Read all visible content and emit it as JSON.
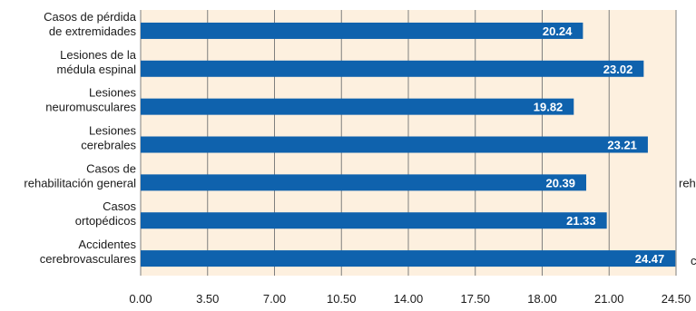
{
  "chart_data": {
    "type": "bar",
    "orientation": "horizontal",
    "categories": [
      [
        "Casos de pérdida",
        "de extremidades"
      ],
      [
        "Lesiones de la",
        "médula espinal"
      ],
      [
        "Lesiones",
        "neuromusculares"
      ],
      [
        "Lesiones",
        "cerebrales"
      ],
      [
        "Casos de",
        "rehabilitación general"
      ],
      [
        "Casos",
        "ortopédicos"
      ],
      [
        "Accidentes",
        "cerebrovasculares"
      ]
    ],
    "values": [
      20.24,
      23.02,
      19.82,
      23.21,
      20.39,
      21.33,
      24.47
    ],
    "value_labels": [
      "20.24",
      "23.02",
      "19.82",
      "23.21",
      "20.39",
      "21.33",
      "24.47"
    ],
    "x_ticks": [
      "0.00",
      "3.50",
      "7.00",
      "10.50",
      "14.00",
      "17.50",
      "18.00",
      "21.00",
      "24.50"
    ],
    "xlim": [
      0,
      24.5
    ],
    "title": "",
    "xlabel": "",
    "ylabel": "",
    "grid": "vertical",
    "clipped_texts": [
      "reh",
      "c"
    ],
    "colors": {
      "bar": "#0f62ad",
      "plot_background": "#fdf0df",
      "grid": "#7f7f7f",
      "value_text": "#ffffff"
    }
  }
}
